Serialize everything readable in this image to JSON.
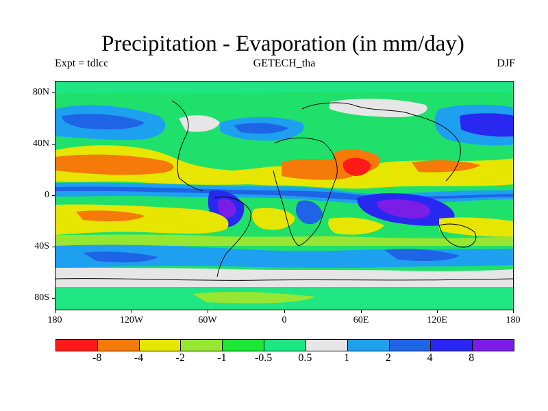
{
  "title": "Precipitation - Evaporation (in mm/day)",
  "subtitle_left": "Expt = tdlcc",
  "subtitle_center": "GETECH_tha",
  "subtitle_right": "DJF",
  "lat_labels": [
    "80N",
    "40N",
    "0",
    "40S",
    "80S"
  ],
  "lon_labels": [
    "180",
    "120W",
    "60W",
    "0",
    "60E",
    "120E",
    "180"
  ],
  "colorbar": {
    "colors": [
      "#ff1a1a",
      "#f57a0a",
      "#e6e600",
      "#96e632",
      "#1ee632",
      "#1ee682",
      "#e6e6e6",
      "#1ea0f0",
      "#1e64e6",
      "#2828f0",
      "#7a1ee6"
    ],
    "labels": [
      "-8",
      "-4",
      "-2",
      "-1",
      "-0.5",
      "0.5",
      "1",
      "2",
      "4",
      "8"
    ]
  }
}
